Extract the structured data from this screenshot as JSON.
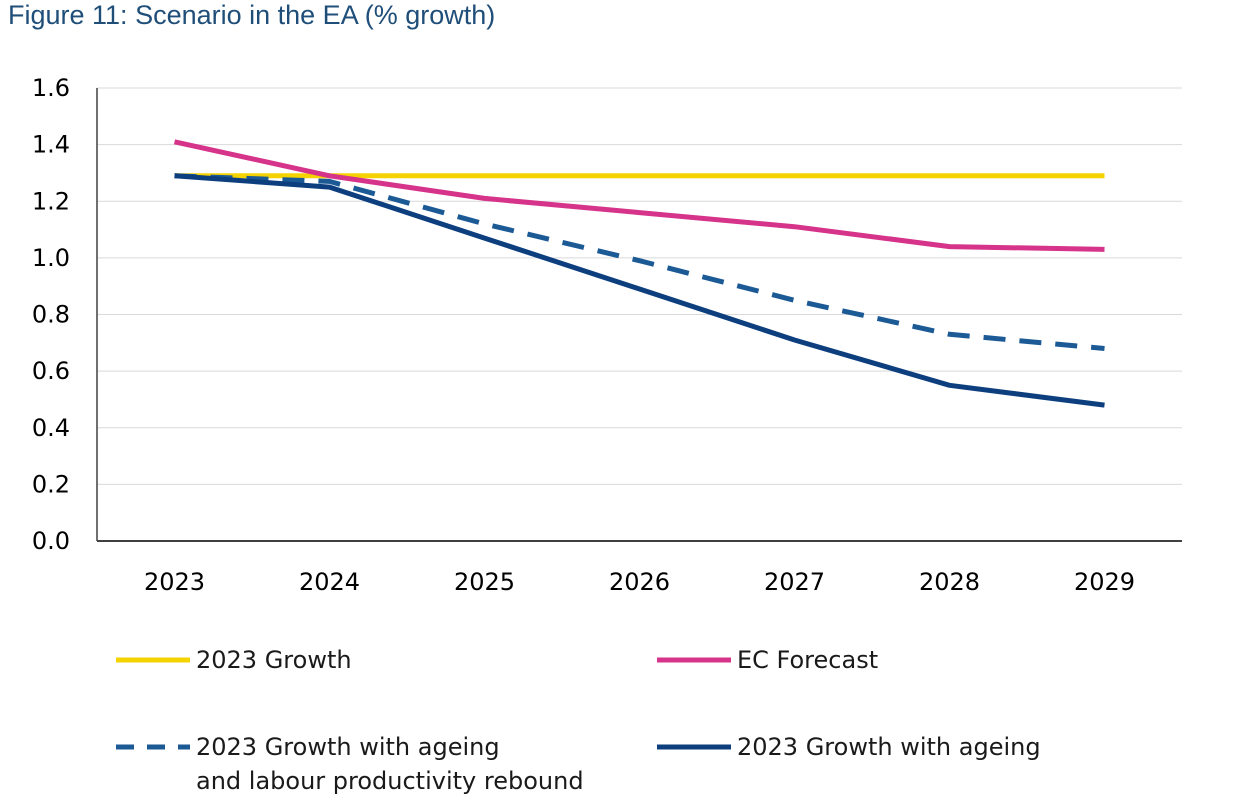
{
  "figure_title": "Figure 11: Scenario in the EA (% growth)",
  "chart_data": {
    "type": "line",
    "title": "Figure 11: Scenario in the EA (% growth)",
    "xlabel": "",
    "ylabel": "",
    "x": [
      "2023",
      "2024",
      "2025",
      "2026",
      "2027",
      "2028",
      "2029"
    ],
    "ylim": [
      0,
      1.6
    ],
    "yticks": [
      "0.0",
      "0.2",
      "0.4",
      "0.6",
      "0.8",
      "1.0",
      "1.2",
      "1.4",
      "1.6"
    ],
    "grid": true,
    "legend_position": "bottom",
    "series": [
      {
        "name": "2023 Growth",
        "values": [
          1.29,
          1.29,
          1.29,
          1.29,
          1.29,
          1.29,
          1.29
        ],
        "color": "#f5d300",
        "style": "solid"
      },
      {
        "name": "EC Forecast",
        "values": [
          1.41,
          1.29,
          1.21,
          1.16,
          1.11,
          1.04,
          1.03
        ],
        "color": "#d6338a",
        "style": "solid"
      },
      {
        "name": "2023 Growth with ageing and labour productivity rebound",
        "legend_lines": [
          "2023 Growth with ageing",
          "and labour productivity rebound"
        ],
        "values": [
          1.29,
          1.27,
          1.12,
          0.99,
          0.85,
          0.73,
          0.68
        ],
        "color": "#1c5a96",
        "style": "dashed"
      },
      {
        "name": "2023 Growth with ageing",
        "legend_lines": [
          "2023 Growth with ageing"
        ],
        "values": [
          1.29,
          1.25,
          1.07,
          0.89,
          0.71,
          0.55,
          0.48
        ],
        "color": "#0d3f7f",
        "style": "solid"
      }
    ]
  }
}
